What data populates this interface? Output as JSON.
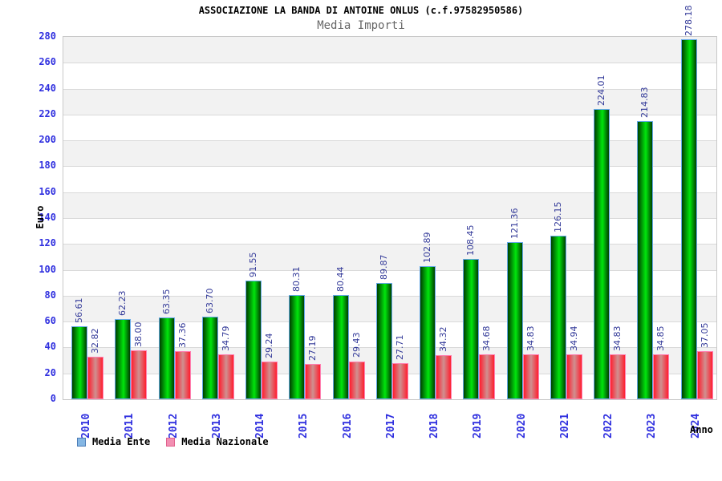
{
  "header": {
    "title": "ASSOCIAZIONE LA BANDA DI ANTOINE ONLUS (c.f.97582950586)",
    "subtitle": "Media Importi"
  },
  "chart_data": {
    "type": "bar",
    "title": "ASSOCIAZIONE LA BANDA DI ANTOINE ONLUS (c.f.97582950586)",
    "subtitle": "Media Importi",
    "xlabel": "Anno",
    "ylabel": "Euro",
    "categories": [
      "2010",
      "2011",
      "2012",
      "2013",
      "2014",
      "2015",
      "2016",
      "2017",
      "2018",
      "2019",
      "2020",
      "2021",
      "2022",
      "2023",
      "2024"
    ],
    "series": [
      {
        "name": "Media Ente",
        "key": "media-ente",
        "values": [
          56.61,
          62.23,
          63.35,
          63.7,
          91.55,
          80.31,
          80.44,
          89.87,
          102.89,
          108.45,
          121.36,
          126.15,
          224.01,
          214.83,
          278.18
        ]
      },
      {
        "name": "Media Nazionale",
        "key": "media-nazionale",
        "values": [
          32.82,
          38.0,
          37.36,
          34.79,
          29.24,
          27.19,
          29.43,
          27.71,
          34.32,
          34.68,
          34.83,
          34.94,
          34.83,
          34.85,
          37.05
        ]
      }
    ],
    "ylim": [
      0,
      280
    ],
    "ytick_step": 20,
    "grid": true,
    "legend_position": "bottom",
    "value_label_format": "2-decimals",
    "bands_alternating": true
  },
  "legend": {
    "items": [
      {
        "label": "Media Ente",
        "swatch": "blue"
      },
      {
        "label": "Media Nazionale",
        "swatch": "pink"
      }
    ]
  },
  "theme": {
    "tick_label_color": "#2f2fdf",
    "value_label_color": "#333a99",
    "title_color": "#000000",
    "subtitle_color": "#666666",
    "gridline_color": "#d9d9d9",
    "band_gray": "#f2f2f2",
    "band_white": "#ffffff",
    "plot_border": "#c8c8c8",
    "green_bar": {
      "edge": "#003f00",
      "light": "#00e60c",
      "border": "#64a8e8"
    },
    "red_bar": {
      "edge": "#ff1f2f",
      "light": "#cf9090",
      "border": "#ff7fb0"
    },
    "swatch_blue": {
      "fill": "#85b7e4",
      "border": "#4a7ab5"
    },
    "swatch_pink": {
      "fill": "#f28fb2",
      "border": "#e0608c"
    }
  }
}
